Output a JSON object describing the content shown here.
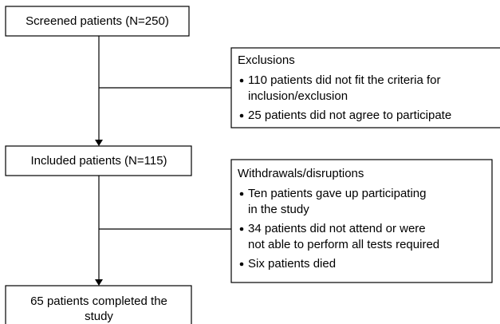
{
  "nodes": [
    {
      "label": [
        "Screened patients (N=250)"
      ]
    },
    {
      "label": [
        "Included patients (N=115)"
      ]
    },
    {
      "label": [
        "65 patients completed the",
        "study"
      ]
    }
  ],
  "side_boxes": [
    {
      "title": "Exclusions",
      "items": [
        [
          "110 patients did not fit the criteria for",
          "inclusion/exclusion"
        ],
        [
          "25 patients did not agree to participate"
        ]
      ]
    },
    {
      "title": "Withdrawals/disruptions",
      "items": [
        [
          "Ten patients gave up participating",
          "in the study"
        ],
        [
          "34 patients did not attend or were",
          "not able to perform all tests required"
        ],
        [
          "Six patients died"
        ]
      ]
    }
  ]
}
